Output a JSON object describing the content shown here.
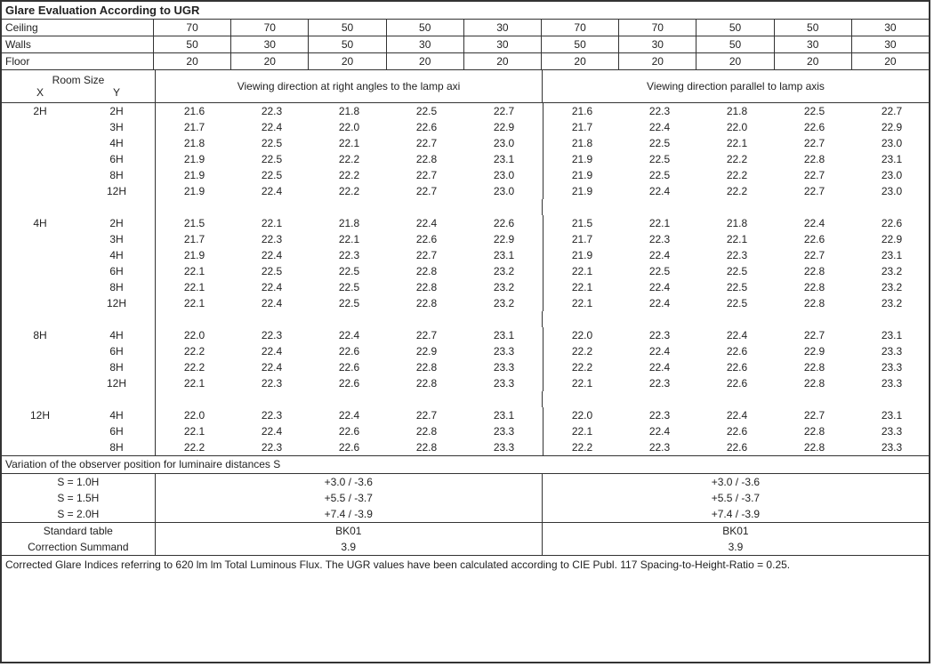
{
  "title": "Glare Evaluation According to UGR",
  "header": {
    "rows": [
      {
        "label": "Ceiling",
        "left": [
          "70",
          "70",
          "50",
          "50",
          "30"
        ],
        "right": [
          "70",
          "70",
          "50",
          "50",
          "30"
        ]
      },
      {
        "label": "Walls",
        "left": [
          "50",
          "30",
          "50",
          "30",
          "30"
        ],
        "right": [
          "50",
          "30",
          "50",
          "30",
          "30"
        ]
      },
      {
        "label": "Floor",
        "left": [
          "20",
          "20",
          "20",
          "20",
          "20"
        ],
        "right": [
          "20",
          "20",
          "20",
          "20",
          "20"
        ]
      }
    ]
  },
  "roomsize": {
    "label": "Room Size",
    "x": "X",
    "y": "Y"
  },
  "viewing": {
    "left": "Viewing direction at right angles to the lamp axi",
    "right": "Viewing direction parallel to lamp axis"
  },
  "groups": [
    {
      "x": "2H",
      "rows": [
        {
          "y": "2H",
          "l": [
            "21.6",
            "22.3",
            "21.8",
            "22.5",
            "22.7"
          ],
          "r": [
            "21.6",
            "22.3",
            "21.8",
            "22.5",
            "22.7"
          ]
        },
        {
          "y": "3H",
          "l": [
            "21.7",
            "22.4",
            "22.0",
            "22.6",
            "22.9"
          ],
          "r": [
            "21.7",
            "22.4",
            "22.0",
            "22.6",
            "22.9"
          ]
        },
        {
          "y": "4H",
          "l": [
            "21.8",
            "22.5",
            "22.1",
            "22.7",
            "23.0"
          ],
          "r": [
            "21.8",
            "22.5",
            "22.1",
            "22.7",
            "23.0"
          ]
        },
        {
          "y": "6H",
          "l": [
            "21.9",
            "22.5",
            "22.2",
            "22.8",
            "23.1"
          ],
          "r": [
            "21.9",
            "22.5",
            "22.2",
            "22.8",
            "23.1"
          ]
        },
        {
          "y": "8H",
          "l": [
            "21.9",
            "22.5",
            "22.2",
            "22.7",
            "23.0"
          ],
          "r": [
            "21.9",
            "22.5",
            "22.2",
            "22.7",
            "23.0"
          ]
        },
        {
          "y": "12H",
          "l": [
            "21.9",
            "22.4",
            "22.2",
            "22.7",
            "23.0"
          ],
          "r": [
            "21.9",
            "22.4",
            "22.2",
            "22.7",
            "23.0"
          ]
        }
      ],
      "spacer_after": true
    },
    {
      "x": "4H",
      "rows": [
        {
          "y": "2H",
          "l": [
            "21.5",
            "22.1",
            "21.8",
            "22.4",
            "22.6"
          ],
          "r": [
            "21.5",
            "22.1",
            "21.8",
            "22.4",
            "22.6"
          ]
        },
        {
          "y": "3H",
          "l": [
            "21.7",
            "22.3",
            "22.1",
            "22.6",
            "22.9"
          ],
          "r": [
            "21.7",
            "22.3",
            "22.1",
            "22.6",
            "22.9"
          ]
        },
        {
          "y": "4H",
          "l": [
            "21.9",
            "22.4",
            "22.3",
            "22.7",
            "23.1"
          ],
          "r": [
            "21.9",
            "22.4",
            "22.3",
            "22.7",
            "23.1"
          ]
        },
        {
          "y": "6H",
          "l": [
            "22.1",
            "22.5",
            "22.5",
            "22.8",
            "23.2"
          ],
          "r": [
            "22.1",
            "22.5",
            "22.5",
            "22.8",
            "23.2"
          ]
        },
        {
          "y": "8H",
          "l": [
            "22.1",
            "22.4",
            "22.5",
            "22.8",
            "23.2"
          ],
          "r": [
            "22.1",
            "22.4",
            "22.5",
            "22.8",
            "23.2"
          ]
        },
        {
          "y": "12H",
          "l": [
            "22.1",
            "22.4",
            "22.5",
            "22.8",
            "23.2"
          ],
          "r": [
            "22.1",
            "22.4",
            "22.5",
            "22.8",
            "23.2"
          ]
        }
      ],
      "spacer_after": true
    },
    {
      "x": "8H",
      "rows": [
        {
          "y": "4H",
          "l": [
            "22.0",
            "22.3",
            "22.4",
            "22.7",
            "23.1"
          ],
          "r": [
            "22.0",
            "22.3",
            "22.4",
            "22.7",
            "23.1"
          ]
        },
        {
          "y": "6H",
          "l": [
            "22.2",
            "22.4",
            "22.6",
            "22.9",
            "23.3"
          ],
          "r": [
            "22.2",
            "22.4",
            "22.6",
            "22.9",
            "23.3"
          ]
        },
        {
          "y": "8H",
          "l": [
            "22.2",
            "22.4",
            "22.6",
            "22.8",
            "23.3"
          ],
          "r": [
            "22.2",
            "22.4",
            "22.6",
            "22.8",
            "23.3"
          ]
        },
        {
          "y": "12H",
          "l": [
            "22.1",
            "22.3",
            "22.6",
            "22.8",
            "23.3"
          ],
          "r": [
            "22.1",
            "22.3",
            "22.6",
            "22.8",
            "23.3"
          ]
        }
      ],
      "spacer_after": true
    },
    {
      "x": "12H",
      "rows": [
        {
          "y": "4H",
          "l": [
            "22.0",
            "22.3",
            "22.4",
            "22.7",
            "23.1"
          ],
          "r": [
            "22.0",
            "22.3",
            "22.4",
            "22.7",
            "23.1"
          ]
        },
        {
          "y": "6H",
          "l": [
            "22.1",
            "22.4",
            "22.6",
            "22.8",
            "23.3"
          ],
          "r": [
            "22.1",
            "22.4",
            "22.6",
            "22.8",
            "23.3"
          ]
        },
        {
          "y": "8H",
          "l": [
            "22.2",
            "22.3",
            "22.6",
            "22.8",
            "23.3"
          ],
          "r": [
            "22.2",
            "22.3",
            "22.6",
            "22.8",
            "23.3"
          ]
        }
      ],
      "spacer_after": false
    }
  ],
  "variation": {
    "heading": "Variation of the observer position for luminaire distances S",
    "rows": [
      {
        "label": "S = 1.0H",
        "left": "+3.0 / -3.6",
        "right": "+3.0 / -3.6"
      },
      {
        "label": "S = 1.5H",
        "left": "+5.5 / -3.7",
        "right": "+5.5 / -3.7"
      },
      {
        "label": "S = 2.0H",
        "left": "+7.4 / -3.9",
        "right": "+7.4 / -3.9"
      }
    ]
  },
  "standard": {
    "rows": [
      {
        "label": "Standard table",
        "left": "BK01",
        "right": "BK01"
      },
      {
        "label": "Correction Summand",
        "left": "3.9",
        "right": "3.9"
      }
    ]
  },
  "footnote": "Corrected Glare Indices referring to 620 lm lm Total Luminous Flux. The UGR values have been calculated according to CIE Publ. 117    Spacing-to-Height-Ratio = 0.25."
}
